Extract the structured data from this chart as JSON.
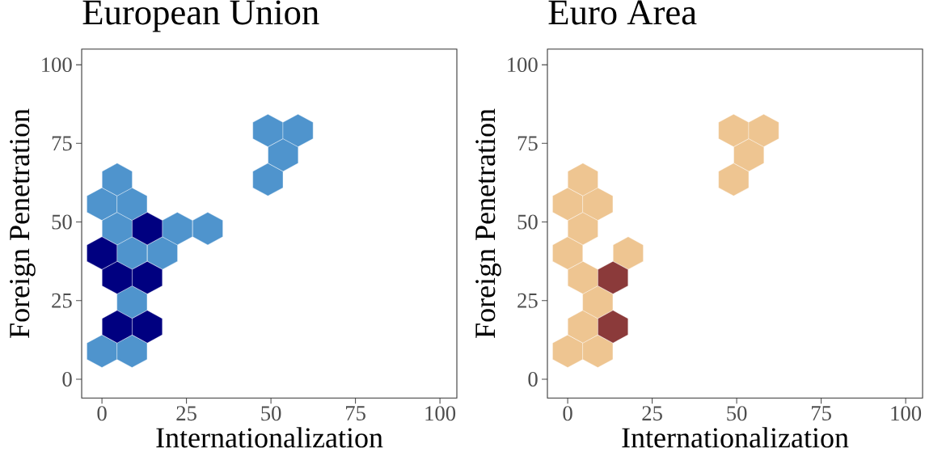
{
  "chart_data": [
    {
      "type": "scatter",
      "title": "European Union",
      "xlabel": "Internationalization",
      "ylabel": "Foreign Penetration",
      "xlim": [
        -6,
        105
      ],
      "ylim": [
        -6,
        105
      ],
      "xticks": [
        0,
        25,
        50,
        75,
        100
      ],
      "yticks": [
        0,
        25,
        50,
        75,
        100
      ],
      "series": [
        {
          "color": "#4f94cd",
          "x": [
            0,
            8.9,
            8.9,
            8.9,
            17.9,
            4.5,
            22.3,
            31.3,
            0,
            8.9,
            4.5,
            49.1,
            53.6,
            49.1,
            58.0
          ],
          "values": [
            8.9,
            8.9,
            24.5,
            40.1,
            40.1,
            47.9,
            47.9,
            47.9,
            55.7,
            55.7,
            63.5,
            63.5,
            71.3,
            79.1,
            79.1
          ]
        },
        {
          "color": "#000080",
          "x": [
            4.5,
            13.4,
            4.5,
            13.4,
            0,
            13.4
          ],
          "values": [
            16.7,
            16.7,
            32.3,
            32.3,
            40.1,
            47.9
          ]
        }
      ]
    },
    {
      "type": "scatter",
      "title": "Euro Area",
      "xlabel": "Internationalization",
      "ylabel": "Foreign Penetration",
      "xlim": [
        -6,
        105
      ],
      "ylim": [
        -6,
        105
      ],
      "xticks": [
        0,
        25,
        50,
        75,
        100
      ],
      "yticks": [
        0,
        25,
        50,
        75,
        100
      ],
      "series": [
        {
          "color": "#eec591",
          "x": [
            0,
            8.9,
            4.5,
            8.9,
            4.5,
            0,
            17.9,
            4.5,
            0,
            8.9,
            4.5,
            49.1,
            53.6,
            49.1,
            58.0
          ],
          "values": [
            8.9,
            8.9,
            16.7,
            24.5,
            32.3,
            40.1,
            40.1,
            47.9,
            55.7,
            55.7,
            63.5,
            63.5,
            71.3,
            79.1,
            79.1
          ]
        },
        {
          "color": "#8b3a3a",
          "x": [
            13.4,
            13.4
          ],
          "values": [
            16.7,
            32.3
          ]
        }
      ]
    }
  ]
}
